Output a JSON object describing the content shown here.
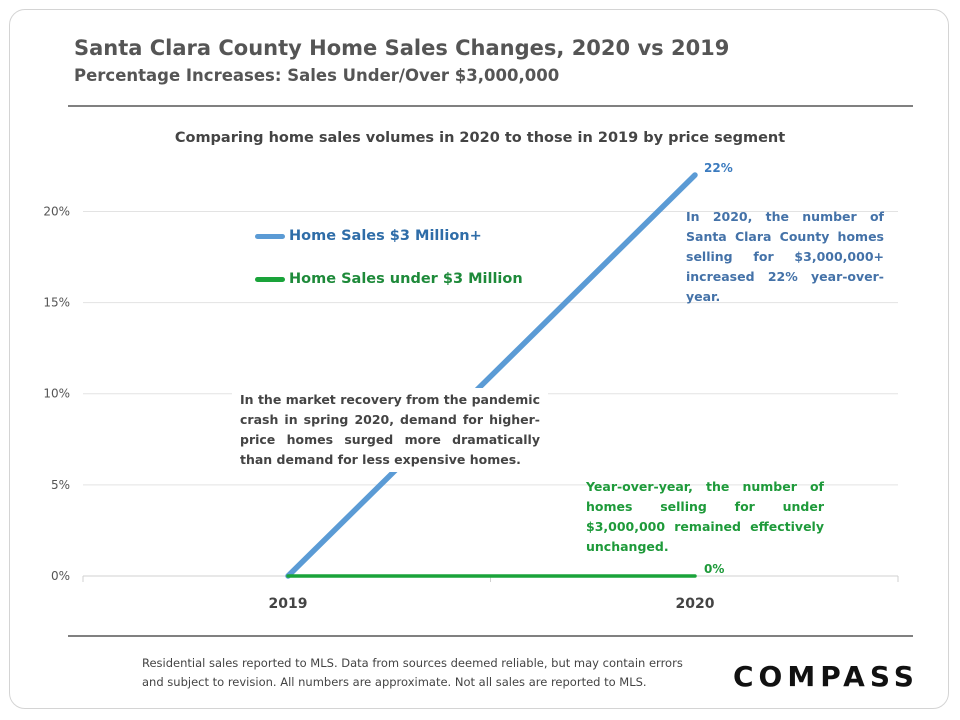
{
  "header": {
    "title": "Santa Clara County Home Sales Changes, 2020 vs 2019",
    "subtitle": "Percentage Increases: Sales Under/Over $3,000,000"
  },
  "chart_data": {
    "type": "line",
    "title": "Comparing home sales volumes in 2020 to those in 2019 by price segment",
    "categories": [
      "2019",
      "2020"
    ],
    "ylim": [
      0,
      22
    ],
    "yticks": [
      0,
      5,
      10,
      15,
      20
    ],
    "ytick_labels": [
      "0%",
      "5%",
      "10%",
      "15%",
      "20%"
    ],
    "grid": true,
    "series": [
      {
        "name": "Home Sales $3 Million+",
        "values": [
          0,
          22
        ],
        "color": "#5b9bd5",
        "end_label": "22%"
      },
      {
        "name": "Home Sales under $3 Million",
        "values": [
          0,
          0
        ],
        "color": "#1aa33a",
        "end_label": "0%"
      }
    ],
    "legend_position": "upper-left",
    "annotations": {
      "left": "In the market recovery from the pandemic crash in spring 2020, demand for higher-price homes surged more dramatically than demand for less expensive homes.",
      "right": "In 2020, the number of Santa Clara County homes selling for $3,000,000+ increased 22% year-over-year.",
      "green": "Year-over-year, the number of homes selling for under $3,000,000 remained effectively unchanged."
    }
  },
  "footer": {
    "disclaimer_line1": "Residential sales reported to MLS. Data from sources deemed reliable, but may contain errors",
    "disclaimer_line2": "and subject to revision. All numbers are approximate. Not all sales are reported to MLS.",
    "logo_text": "COMPASS"
  }
}
